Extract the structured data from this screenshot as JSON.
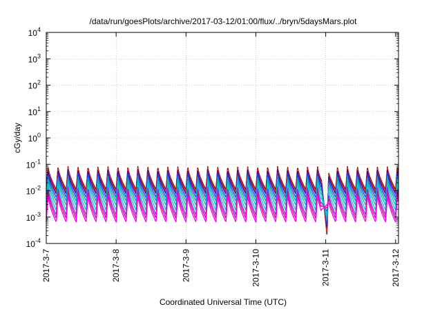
{
  "chart_data": {
    "type": "line",
    "title": "/data/run/goesPlots/archive/2017-03-12/01:00/flux/../bryn/5daysMars.plot",
    "xlabel": "Coordinated Universal Time (UTC)",
    "ylabel": "cGy/day",
    "yscale": "log",
    "ylim": [
      0.0001,
      10000
    ],
    "xlim": [
      "2017-03-07 00:00",
      "2017-03-12 01:00"
    ],
    "grid": true,
    "x_ticks": [
      "2017-3-7",
      "2017-3-8",
      "2017-3-9",
      "2017-3-10",
      "2017-3-11",
      "2017-3-12"
    ],
    "y_ticks": [
      {
        "base": "10",
        "exp": "-4"
      },
      {
        "base": "10",
        "exp": "-3"
      },
      {
        "base": "10",
        "exp": "-2"
      },
      {
        "base": "10",
        "exp": "-1"
      },
      {
        "base": "10",
        "exp": "0"
      },
      {
        "base": "10",
        "exp": "1"
      },
      {
        "base": "10",
        "exp": "2"
      },
      {
        "base": "10",
        "exp": "3"
      },
      {
        "base": "10",
        "exp": "4"
      }
    ],
    "pattern": {
      "description": "periodic sawtooth oscillation repeating about 7 times per day",
      "cycles_per_day": 7,
      "dropout": {
        "start": "2017-03-10 22:30",
        "end": "2017-03-11 01:00",
        "min_value": 0.0002
      }
    },
    "series": [
      {
        "color": "#8b0000",
        "peak": 0.085,
        "trough": 0.011
      },
      {
        "color": "#e83b1a",
        "peak": 0.075,
        "trough": 0.009
      },
      {
        "color": "#4b0082",
        "peak": 0.065,
        "trough": 0.0075
      },
      {
        "color": "#1a3cff",
        "peak": 0.05,
        "trough": 0.0055
      },
      {
        "color": "#1e90c8",
        "peak": 0.038,
        "trough": 0.004
      },
      {
        "color": "#20b2aa",
        "peak": 0.028,
        "trough": 0.0028
      },
      {
        "color": "#00ced1",
        "peak": 0.02,
        "trough": 0.0018
      },
      {
        "color": "#8a2be2",
        "peak": 0.014,
        "trough": 0.0012
      },
      {
        "color": "#c71585",
        "peak": 0.01,
        "trough": 0.0009
      },
      {
        "color": "#ff00ff",
        "peak": 0.007,
        "trough": 0.00065
      }
    ]
  }
}
